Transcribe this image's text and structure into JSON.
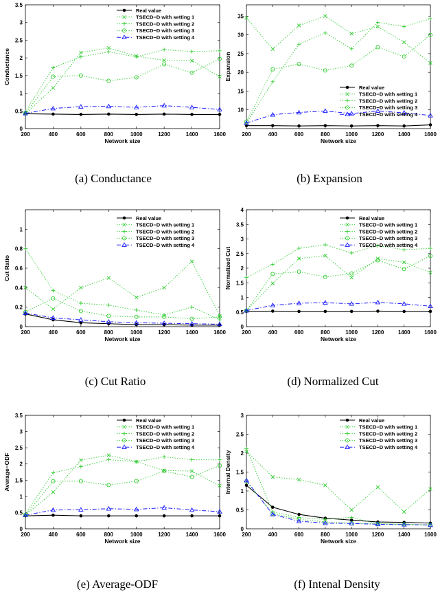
{
  "chart_data": [
    {
      "type": "line",
      "caption": "(a) Conductance",
      "xlabel": "Network size",
      "ylabel": "Conductance",
      "x": [
        200,
        400,
        600,
        800,
        1000,
        1200,
        1400,
        1600
      ],
      "ylim": [
        0,
        3.5
      ],
      "yticks": [
        0,
        0.5,
        1,
        1.5,
        2,
        2.5,
        3,
        3.5
      ],
      "ytick_labels": [
        "0",
        "0.5",
        "1",
        "1.5",
        "2",
        "2.5",
        "3",
        "3.5"
      ],
      "legend": "top-right",
      "series": [
        {
          "name": "Real value",
          "color": "#000000",
          "marker": "dot",
          "dash": "solid",
          "values": [
            0.42,
            0.41,
            0.4,
            0.41,
            0.4,
            0.41,
            0.4,
            0.4
          ]
        },
        {
          "name": "TSECD−D with setting 1",
          "color": "#33cc33",
          "marker": "x",
          "dash": "dotted",
          "values": [
            0.42,
            1.15,
            2.15,
            2.28,
            2.05,
            1.93,
            1.92,
            1.47
          ]
        },
        {
          "name": "TSECD−D with setting 2",
          "color": "#33cc33",
          "marker": "plus",
          "dash": "dotted",
          "values": [
            0.48,
            1.72,
            2.03,
            2.17,
            2.03,
            2.23,
            2.18,
            2.2
          ]
        },
        {
          "name": "TSECD−D with setting 3",
          "color": "#33cc33",
          "marker": "circle",
          "dash": "dotted",
          "values": [
            0.43,
            1.47,
            1.5,
            1.35,
            1.45,
            1.82,
            1.58,
            1.97
          ]
        },
        {
          "name": "TSECD−D with setting 4",
          "color": "#1a1aff",
          "marker": "triangle",
          "dash": "dashdot",
          "values": [
            0.43,
            0.57,
            0.62,
            0.63,
            0.6,
            0.65,
            0.6,
            0.54
          ]
        }
      ]
    },
    {
      "type": "line",
      "caption": "(b) Expansion",
      "xlabel": "Network size",
      "ylabel": "Expansion",
      "x": [
        200,
        400,
        600,
        800,
        1000,
        1200,
        1400,
        1600
      ],
      "ylim": [
        5,
        38
      ],
      "yticks": [
        10,
        15,
        20,
        25,
        30,
        35
      ],
      "ytick_labels": [
        "10",
        "15",
        "20",
        "25",
        "30",
        "35"
      ],
      "legend": "right",
      "series": [
        {
          "name": "Real value",
          "color": "#000000",
          "marker": "dot",
          "dash": "solid",
          "values": [
            5.8,
            5.8,
            5.7,
            5.8,
            5.7,
            5.8,
            5.7,
            6.0
          ]
        },
        {
          "name": "TSECD−D with setting 1",
          "color": "#33cc33",
          "marker": "x",
          "dash": "dotted",
          "values": [
            34.5,
            26.2,
            32.5,
            35.0,
            30.3,
            32.2,
            28.0,
            22.5
          ]
        },
        {
          "name": "TSECD−D with setting 2",
          "color": "#33cc33",
          "marker": "plus",
          "dash": "dotted",
          "values": [
            6.5,
            17.5,
            27.5,
            30.5,
            26.3,
            33.3,
            32.2,
            34.3
          ]
        },
        {
          "name": "TSECD−D with setting 3",
          "color": "#33cc33",
          "marker": "circle",
          "dash": "dotted",
          "values": [
            6.8,
            20.8,
            22.2,
            20.5,
            21.8,
            26.7,
            24.2,
            30.0
          ]
        },
        {
          "name": "TSECD−D with setting 4",
          "color": "#1a1aff",
          "marker": "triangle",
          "dash": "dashdot",
          "values": [
            6.5,
            8.7,
            9.3,
            9.7,
            9.0,
            9.7,
            9.2,
            8.5
          ]
        }
      ]
    },
    {
      "type": "line",
      "caption": "(c) Cut Ratio",
      "xlabel": "Network size",
      "ylabel": "Cut Ratio",
      "x": [
        200,
        400,
        600,
        800,
        1000,
        1200,
        1400,
        1600
      ],
      "ylim": [
        0,
        1.2
      ],
      "yticks": [
        0,
        0.2,
        0.4,
        0.6,
        0.8,
        1
      ],
      "ytick_labels": [
        "0",
        "0.2",
        "0.4",
        "0.6",
        "0.8",
        "1"
      ],
      "legend": "top-right",
      "series": [
        {
          "name": "Real value",
          "color": "#000000",
          "marker": "dot",
          "dash": "solid",
          "values": [
            0.13,
            0.07,
            0.04,
            0.03,
            0.02,
            0.02,
            0.015,
            0.015
          ]
        },
        {
          "name": "TSECD−D with setting 1",
          "color": "#33cc33",
          "marker": "x",
          "dash": "dotted",
          "values": [
            0.4,
            0.18,
            0.4,
            0.5,
            0.3,
            0.4,
            0.67,
            0.11
          ]
        },
        {
          "name": "TSECD−D with setting 2",
          "color": "#33cc33",
          "marker": "plus",
          "dash": "dotted",
          "values": [
            0.8,
            0.37,
            0.24,
            0.22,
            0.17,
            0.12,
            0.2,
            0.07
          ]
        },
        {
          "name": "TSECD−D with setting 3",
          "color": "#33cc33",
          "marker": "circle",
          "dash": "dotted",
          "values": [
            0.15,
            0.29,
            0.16,
            0.11,
            0.1,
            0.1,
            0.08,
            0.1
          ]
        },
        {
          "name": "TSECD−D with setting 4",
          "color": "#1a1aff",
          "marker": "triangle",
          "dash": "dashdot",
          "values": [
            0.14,
            0.09,
            0.07,
            0.05,
            0.04,
            0.035,
            0.03,
            0.025
          ]
        }
      ]
    },
    {
      "type": "line",
      "caption": "(d) Normalized Cut",
      "xlabel": "Network size",
      "ylabel": "Normalized Cut",
      "x": [
        200,
        400,
        600,
        800,
        1000,
        1200,
        1400,
        1600
      ],
      "ylim": [
        0,
        4
      ],
      "yticks": [
        0,
        0.5,
        1,
        1.5,
        2,
        2.5,
        3,
        3.5,
        4
      ],
      "ytick_labels": [
        "0",
        "0.5",
        "1",
        "1.5",
        "2",
        "2.5",
        "3",
        "3.5",
        "4"
      ],
      "legend": "top-right",
      "series": [
        {
          "name": "Real value",
          "color": "#000000",
          "marker": "dot",
          "dash": "solid",
          "values": [
            0.52,
            0.53,
            0.52,
            0.52,
            0.52,
            0.53,
            0.52,
            0.52
          ]
        },
        {
          "name": "TSECD−D with setting 1",
          "color": "#33cc33",
          "marker": "x",
          "dash": "dotted",
          "values": [
            0.55,
            1.48,
            2.33,
            2.43,
            1.68,
            2.33,
            2.2,
            1.85
          ]
        },
        {
          "name": "TSECD−D with setting 2",
          "color": "#33cc33",
          "marker": "plus",
          "dash": "dotted",
          "values": [
            1.68,
            2.13,
            2.68,
            2.8,
            2.52,
            2.77,
            2.63,
            2.68
          ]
        },
        {
          "name": "TSECD−D with setting 3",
          "color": "#33cc33",
          "marker": "circle",
          "dash": "dotted",
          "values": [
            0.55,
            1.8,
            1.88,
            1.7,
            1.82,
            2.27,
            1.97,
            2.42
          ]
        },
        {
          "name": "TSECD−D with setting 4",
          "color": "#1a1aff",
          "marker": "triangle",
          "dash": "dashdot",
          "values": [
            0.55,
            0.73,
            0.8,
            0.82,
            0.78,
            0.83,
            0.78,
            0.7
          ]
        }
      ]
    },
    {
      "type": "line",
      "caption": "(e) Average-ODF",
      "xlabel": "Network size",
      "ylabel": "Average−ODF",
      "x": [
        200,
        400,
        600,
        800,
        1000,
        1200,
        1400,
        1600
      ],
      "ylim": [
        0,
        3.5
      ],
      "yticks": [
        0,
        0.5,
        1,
        1.5,
        2,
        2.5,
        3,
        3.5
      ],
      "ytick_labels": [
        "0",
        "0.5",
        "1",
        "1.5",
        "2",
        "2.5",
        "3",
        "3.5"
      ],
      "legend": "top-right",
      "series": [
        {
          "name": "Real value",
          "color": "#000000",
          "marker": "dot",
          "dash": "solid",
          "values": [
            0.4,
            0.42,
            0.4,
            0.4,
            0.4,
            0.4,
            0.4,
            0.4
          ]
        },
        {
          "name": "TSECD−D with setting 1",
          "color": "#33cc33",
          "marker": "x",
          "dash": "dotted",
          "values": [
            0.42,
            1.13,
            2.12,
            2.27,
            2.07,
            1.8,
            1.78,
            1.33
          ]
        },
        {
          "name": "TSECD−D with setting 2",
          "color": "#33cc33",
          "marker": "plus",
          "dash": "dotted",
          "values": [
            0.47,
            1.73,
            1.92,
            2.13,
            2.07,
            2.22,
            2.13,
            2.13
          ]
        },
        {
          "name": "TSECD−D with setting 3",
          "color": "#33cc33",
          "marker": "circle",
          "dash": "dotted",
          "values": [
            0.42,
            1.47,
            1.47,
            1.35,
            1.47,
            1.78,
            1.6,
            1.95
          ]
        },
        {
          "name": "TSECD−D with setting 4",
          "color": "#1a1aff",
          "marker": "triangle",
          "dash": "dashdot",
          "values": [
            0.42,
            0.58,
            0.59,
            0.62,
            0.6,
            0.65,
            0.58,
            0.53
          ]
        }
      ]
    },
    {
      "type": "line",
      "caption": "(f) Intenal Density",
      "xlabel": "Network size",
      "ylabel": "Internal Density",
      "x": [
        200,
        400,
        600,
        800,
        1000,
        1200,
        1400,
        1600
      ],
      "ylim": [
        0,
        3
      ],
      "yticks": [
        0,
        0.5,
        1,
        1.5,
        2,
        2.5,
        3
      ],
      "ytick_labels": [
        "0",
        "0.5",
        "1",
        "1.5",
        "2",
        "2.5",
        "3"
      ],
      "legend": "top-right",
      "series": [
        {
          "name": "Real value",
          "color": "#000000",
          "marker": "dot",
          "dash": "solid",
          "values": [
            1.15,
            0.57,
            0.38,
            0.28,
            0.23,
            0.18,
            0.17,
            0.15
          ]
        },
        {
          "name": "TSECD−D with setting 1",
          "color": "#33cc33",
          "marker": "x",
          "dash": "dotted",
          "values": [
            2.05,
            1.37,
            1.3,
            1.15,
            0.5,
            1.1,
            0.45,
            1.05
          ]
        },
        {
          "name": "TSECD−D with setting 2",
          "color": "#33cc33",
          "marker": "plus",
          "dash": "dotted",
          "values": [
            2.12,
            0.45,
            0.3,
            0.25,
            0.3,
            0.13,
            0.12,
            0.1
          ]
        },
        {
          "name": "TSECD−D with setting 3",
          "color": "#33cc33",
          "marker": "circle",
          "dash": "dotted",
          "values": [
            1.25,
            0.4,
            0.25,
            0.18,
            0.15,
            0.13,
            0.12,
            0.1
          ]
        },
        {
          "name": "TSECD−D with setting 4",
          "color": "#1a1aff",
          "marker": "triangle",
          "dash": "dashdot",
          "values": [
            1.28,
            0.38,
            0.2,
            0.15,
            0.14,
            0.12,
            0.11,
            0.1
          ]
        }
      ]
    }
  ]
}
